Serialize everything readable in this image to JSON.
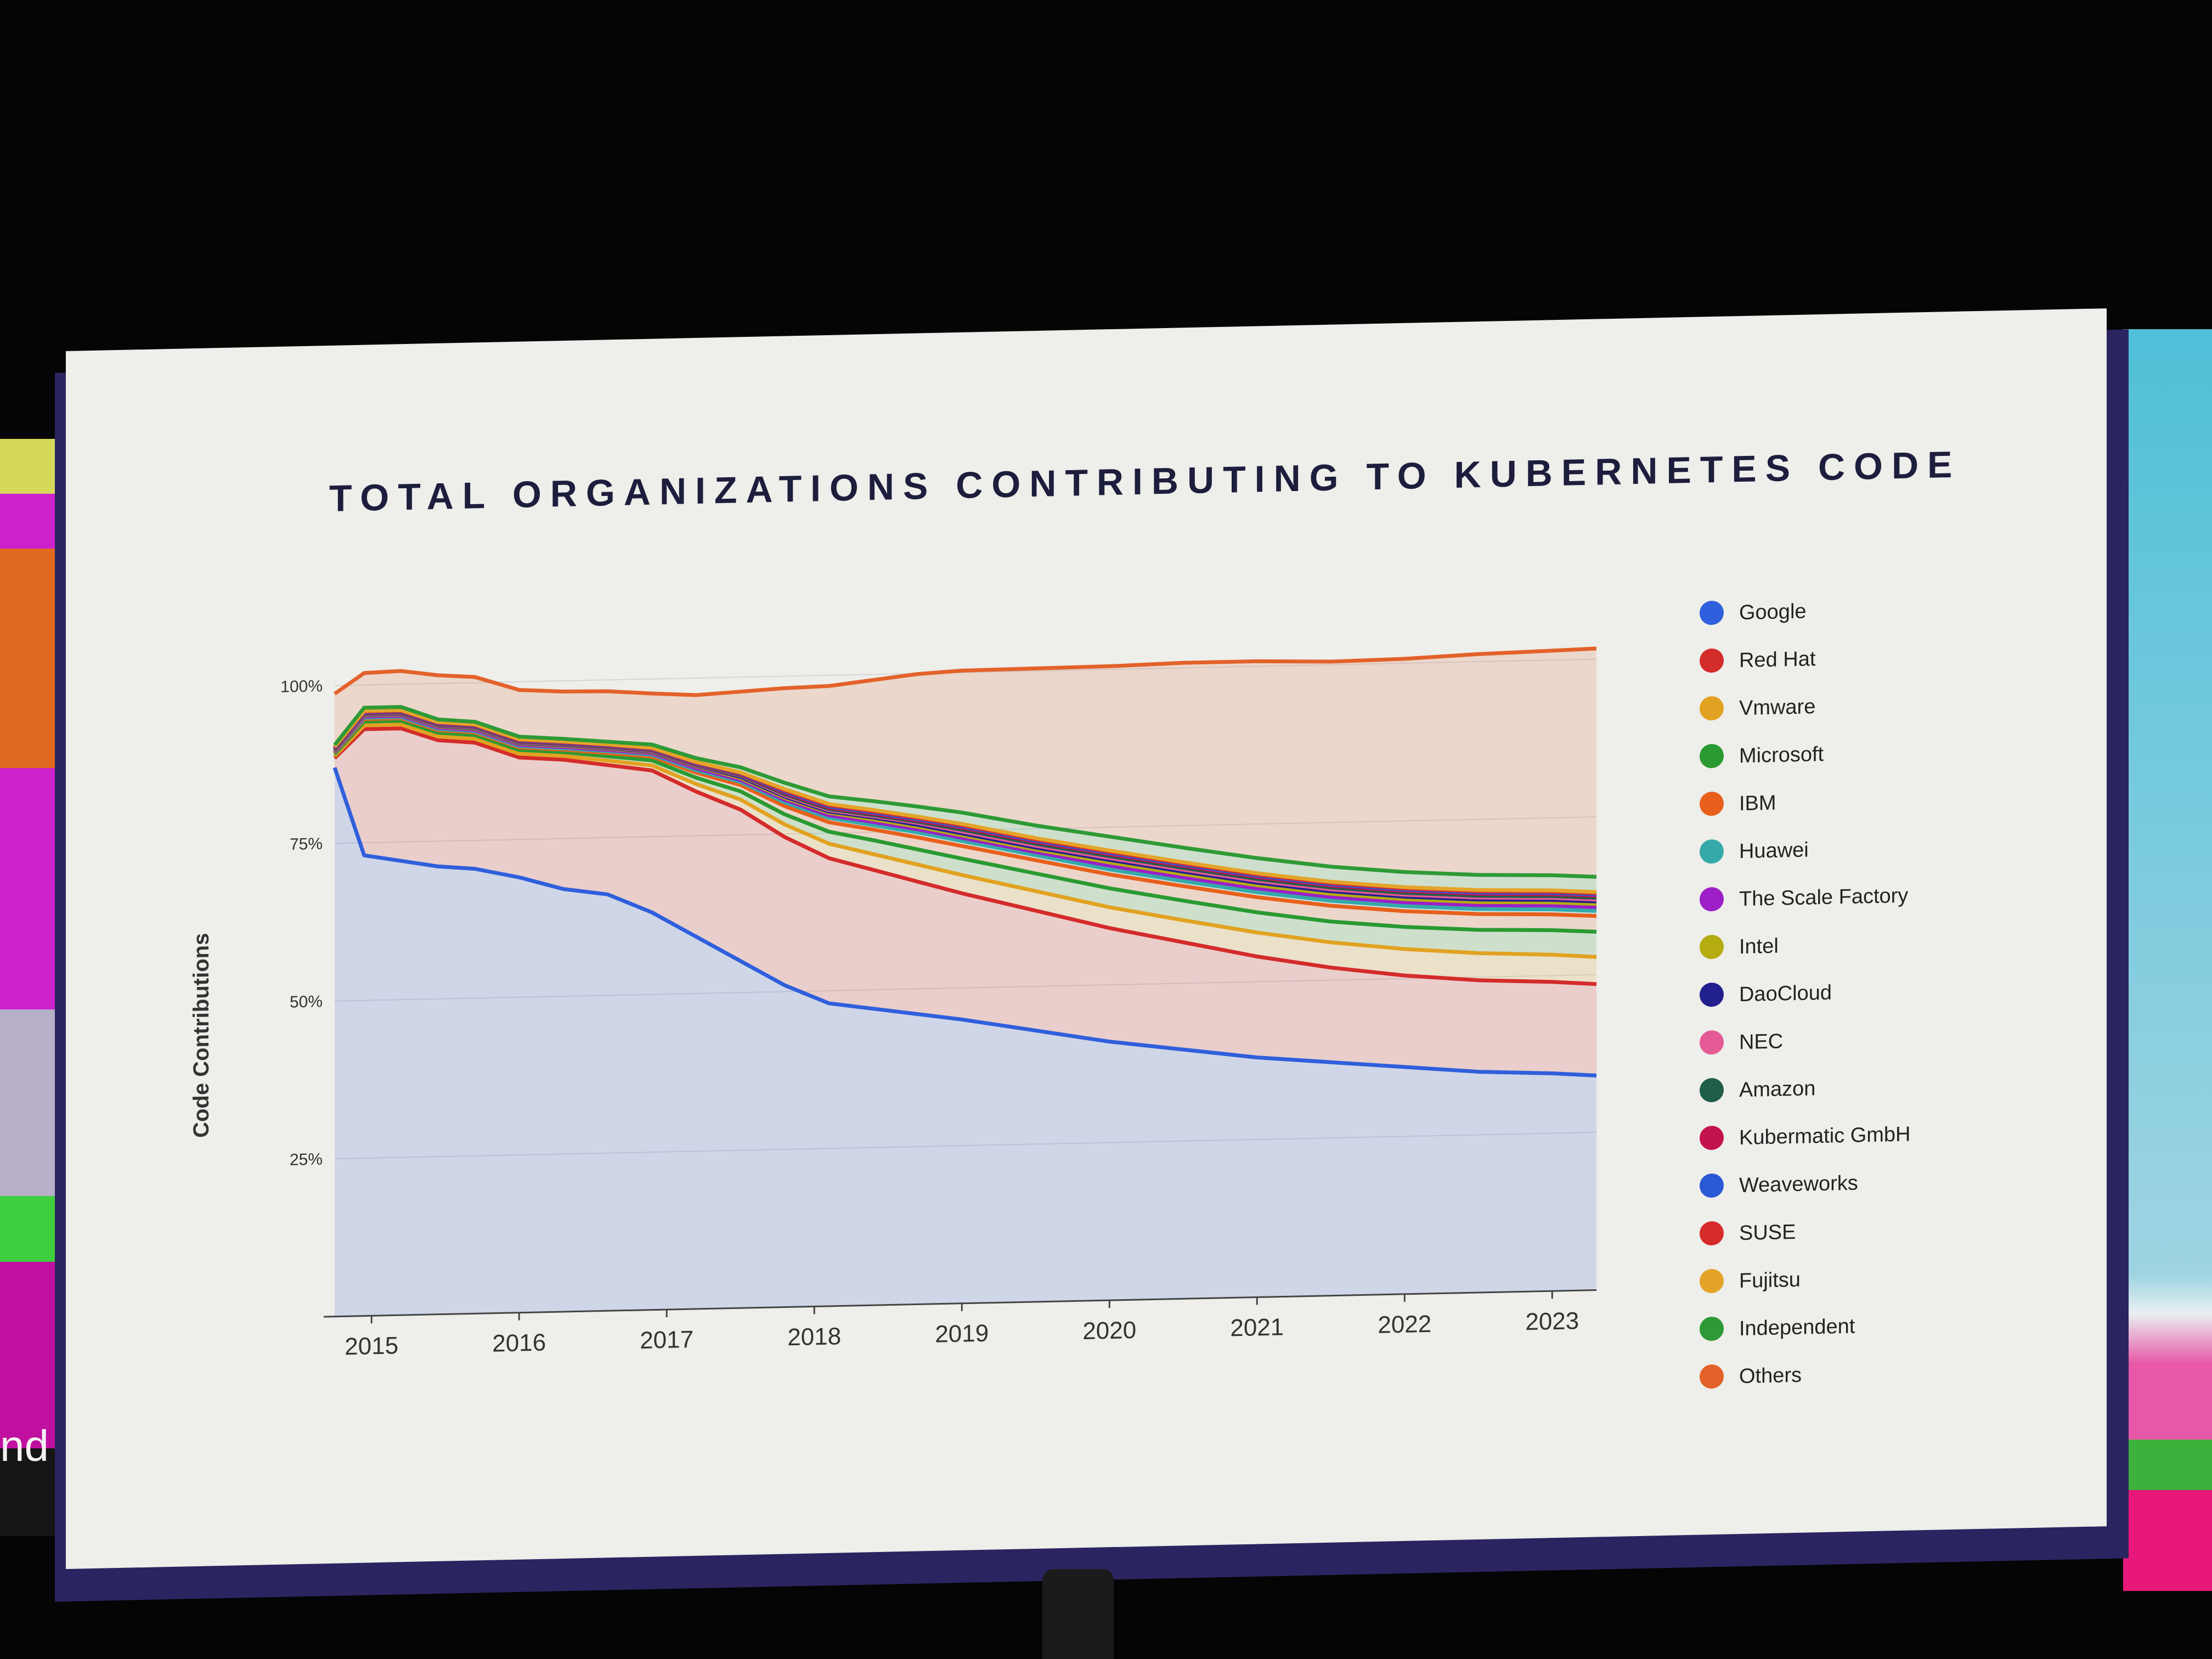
{
  "slide": {
    "title": "TOTAL ORGANIZATIONS CONTRIBUTING TO KUBERNETES CODE"
  },
  "background": {
    "left_screen_text": "nd"
  },
  "chart_data": {
    "type": "area",
    "title": "TOTAL ORGANIZATIONS CONTRIBUTING TO KUBERNETES CODE",
    "xlabel": "",
    "ylabel": "Code Contributions",
    "ylim": [
      0,
      100
    ],
    "yticks": [
      {
        "value": 25,
        "label": "25%"
      },
      {
        "value": 50,
        "label": "50%"
      },
      {
        "value": 75,
        "label": "75%"
      },
      {
        "value": 100,
        "label": "100%"
      }
    ],
    "xlim": [
      2014.75,
      2023.3
    ],
    "xticks": [
      {
        "value": 2015,
        "label": "2015"
      },
      {
        "value": 2016,
        "label": "2016"
      },
      {
        "value": 2017,
        "label": "2017"
      },
      {
        "value": 2018,
        "label": "2018"
      },
      {
        "value": 2019,
        "label": "2019"
      },
      {
        "value": 2020,
        "label": "2020"
      },
      {
        "value": 2021,
        "label": "2021"
      },
      {
        "value": 2022,
        "label": "2022"
      },
      {
        "value": 2023,
        "label": "2023"
      }
    ],
    "grid": true,
    "stacked": true,
    "legend_position": "right",
    "x": [
      2014.75,
      2014.95,
      2015.2,
      2015.45,
      2015.7,
      2016.0,
      2016.3,
      2016.6,
      2016.9,
      2017.2,
      2017.5,
      2017.8,
      2018.1,
      2018.4,
      2018.7,
      2019.0,
      2019.5,
      2020.0,
      2020.5,
      2021.0,
      2021.5,
      2022.0,
      2022.5,
      2023.0,
      2023.3
    ],
    "series": [
      {
        "name": "Google",
        "color": "#2f5fdc",
        "values": [
          87,
          73,
          72,
          71,
          70.5,
          69,
          67,
          66,
          63,
          59,
          55,
          51,
          48,
          47,
          46,
          45,
          43,
          41,
          39.5,
          38,
          37,
          36,
          35,
          34.5,
          34
        ]
      },
      {
        "name": "Red Hat",
        "color": "#d42b2b",
        "values": [
          1.5,
          20,
          21,
          20,
          20,
          19,
          20.5,
          20.5,
          22.5,
          23,
          24,
          23.5,
          23,
          22,
          21,
          20,
          19,
          18,
          17,
          16,
          15,
          14.5,
          14.5,
          14.5,
          14.5
        ]
      },
      {
        "name": "Vmware",
        "color": "#e2a221",
        "values": [
          0.3,
          0.6,
          0.6,
          0.6,
          0.6,
          0.6,
          0.6,
          0.7,
          0.8,
          1.2,
          1.6,
          2.0,
          2.3,
          2.5,
          2.7,
          2.9,
          3.1,
          3.3,
          3.5,
          3.8,
          4.0,
          4.2,
          4.3,
          4.3,
          4.3
        ]
      },
      {
        "name": "Microsoft",
        "color": "#2a9a32",
        "values": [
          0.3,
          0.6,
          0.6,
          0.6,
          0.6,
          0.6,
          0.6,
          0.7,
          0.8,
          1.0,
          1.3,
          1.6,
          1.9,
          2.2,
          2.4,
          2.6,
          2.8,
          3.0,
          3.1,
          3.2,
          3.3,
          3.5,
          3.7,
          3.9,
          4.0
        ]
      },
      {
        "name": "IBM",
        "color": "#e8601c",
        "values": [
          0.2,
          0.4,
          0.4,
          0.4,
          0.4,
          0.4,
          0.4,
          0.5,
          0.6,
          0.8,
          1.0,
          1.3,
          1.5,
          1.7,
          1.9,
          2.0,
          2.1,
          2.2,
          2.3,
          2.4,
          2.5,
          2.5,
          2.5,
          2.5,
          2.5
        ]
      },
      {
        "name": "Huawei",
        "color": "#35a9a9",
        "values": [
          0.1,
          0.2,
          0.2,
          0.2,
          0.2,
          0.2,
          0.2,
          0.3,
          0.3,
          0.4,
          0.5,
          0.6,
          0.7,
          0.7,
          0.8,
          0.8,
          0.8,
          0.8,
          0.8,
          0.8,
          0.8,
          0.8,
          0.8,
          0.8,
          0.8
        ]
      },
      {
        "name": "The Scale Factory",
        "color": "#9c1fc8",
        "values": [
          0.1,
          0.2,
          0.2,
          0.2,
          0.2,
          0.2,
          0.2,
          0.2,
          0.2,
          0.3,
          0.3,
          0.4,
          0.4,
          0.5,
          0.5,
          0.5,
          0.5,
          0.6,
          0.6,
          0.6,
          0.6,
          0.6,
          0.6,
          0.6,
          0.6
        ]
      },
      {
        "name": "Intel",
        "color": "#b4ac10",
        "values": [
          0.1,
          0.2,
          0.2,
          0.2,
          0.2,
          0.2,
          0.2,
          0.2,
          0.2,
          0.3,
          0.3,
          0.3,
          0.4,
          0.4,
          0.4,
          0.4,
          0.4,
          0.5,
          0.5,
          0.5,
          0.5,
          0.5,
          0.5,
          0.5,
          0.5
        ]
      },
      {
        "name": "DaoCloud",
        "color": "#221f8f",
        "values": [
          0.1,
          0.1,
          0.1,
          0.1,
          0.1,
          0.1,
          0.1,
          0.1,
          0.1,
          0.1,
          0.2,
          0.2,
          0.2,
          0.3,
          0.3,
          0.3,
          0.3,
          0.4,
          0.4,
          0.4,
          0.4,
          0.4,
          0.4,
          0.4,
          0.4
        ]
      },
      {
        "name": "NEC",
        "color": "#e45a95",
        "values": [
          0.1,
          0.1,
          0.1,
          0.1,
          0.1,
          0.1,
          0.1,
          0.1,
          0.1,
          0.1,
          0.2,
          0.2,
          0.2,
          0.2,
          0.3,
          0.3,
          0.3,
          0.3,
          0.3,
          0.3,
          0.3,
          0.3,
          0.3,
          0.3,
          0.3
        ]
      },
      {
        "name": "Amazon",
        "color": "#1f5e48",
        "values": [
          0.1,
          0.1,
          0.1,
          0.1,
          0.1,
          0.1,
          0.1,
          0.1,
          0.1,
          0.1,
          0.1,
          0.2,
          0.2,
          0.2,
          0.2,
          0.3,
          0.3,
          0.3,
          0.3,
          0.3,
          0.3,
          0.3,
          0.3,
          0.3,
          0.3
        ]
      },
      {
        "name": "Kubermatic GmbH",
        "color": "#c4124f",
        "values": [
          0.1,
          0.1,
          0.1,
          0.1,
          0.1,
          0.1,
          0.1,
          0.1,
          0.1,
          0.1,
          0.1,
          0.2,
          0.2,
          0.2,
          0.2,
          0.3,
          0.3,
          0.3,
          0.3,
          0.3,
          0.3,
          0.3,
          0.3,
          0.3,
          0.3
        ]
      },
      {
        "name": "Weaveworks",
        "color": "#2b58d4",
        "values": [
          0.1,
          0.1,
          0.1,
          0.1,
          0.1,
          0.1,
          0.1,
          0.1,
          0.1,
          0.1,
          0.1,
          0.2,
          0.2,
          0.2,
          0.2,
          0.2,
          0.2,
          0.2,
          0.2,
          0.2,
          0.2,
          0.2,
          0.2,
          0.2,
          0.2
        ]
      },
      {
        "name": "SUSE",
        "color": "#d62b2b",
        "values": [
          0.1,
          0.1,
          0.1,
          0.1,
          0.1,
          0.1,
          0.1,
          0.1,
          0.1,
          0.1,
          0.1,
          0.2,
          0.2,
          0.2,
          0.2,
          0.2,
          0.2,
          0.2,
          0.2,
          0.2,
          0.2,
          0.2,
          0.2,
          0.2,
          0.2
        ]
      },
      {
        "name": "Fujitsu",
        "color": "#e4a42a",
        "values": [
          0.1,
          0.1,
          0.1,
          0.1,
          0.1,
          0.1,
          0.1,
          0.1,
          0.1,
          0.1,
          0.1,
          0.2,
          0.2,
          0.2,
          0.2,
          0.2,
          0.2,
          0.2,
          0.2,
          0.2,
          0.2,
          0.2,
          0.2,
          0.2,
          0.2
        ]
      },
      {
        "name": "Independent",
        "color": "#2e9a36",
        "values": [
          0.3,
          0.5,
          0.5,
          0.4,
          0.4,
          0.4,
          0.4,
          0.4,
          0.5,
          0.6,
          0.8,
          1.0,
          1.2,
          1.4,
          1.6,
          1.8,
          2.0,
          2.2,
          2.3,
          2.4,
          2.4,
          2.4,
          2.4,
          2.4,
          2.4
        ]
      },
      {
        "name": "Others",
        "color": "#e3622a",
        "values": [
          8.1,
          5.5,
          5.7,
          7.0,
          7.1,
          7.4,
          7.5,
          8.0,
          8.1,
          10.0,
          12.0,
          15.0,
          17.5,
          19.2,
          21.0,
          22.5,
          24.9,
          27.0,
          29.3,
          31.2,
          32.5,
          33.8,
          35.0,
          35.6,
          36.2
        ]
      }
    ]
  }
}
